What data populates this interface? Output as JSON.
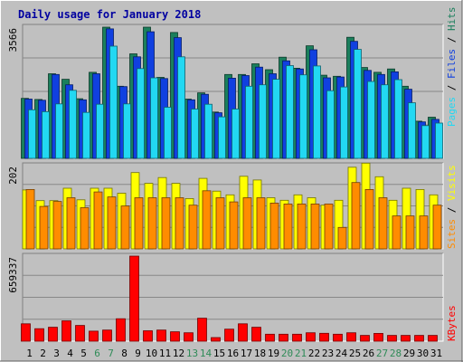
{
  "title": "Daily usage for January 2018",
  "colors": {
    "background": "#c0c0c0",
    "title": "#0000a0",
    "hits": "#1a7f5c",
    "files": "#1040e0",
    "pages": "#22d8f2",
    "visits": "#ffff00",
    "sites": "#ff8c00",
    "kbytes": "#ff0000",
    "day_weekday": "#000000",
    "day_weekend": "#2e8b57"
  },
  "chart_data": [
    {
      "type": "bar",
      "title": "Daily usage for January 2018",
      "categories": [
        "1",
        "2",
        "3",
        "4",
        "5",
        "6",
        "7",
        "8",
        "9",
        "10",
        "11",
        "12",
        "13",
        "14",
        "15",
        "16",
        "17",
        "18",
        "19",
        "20",
        "21",
        "22",
        "23",
        "24",
        "25",
        "26",
        "27",
        "28",
        "29",
        "30",
        "31"
      ],
      "weekend_days": [
        "6",
        "7",
        "13",
        "14",
        "20",
        "21",
        "27",
        "28"
      ],
      "ylabel": "Pages / Files / Hits",
      "ylim": [
        0,
        3566
      ],
      "tick_labels": [
        "3566"
      ],
      "grid": true,
      "series": [
        {
          "name": "Hits",
          "values": [
            1630,
            1600,
            2300,
            2150,
            1620,
            2340,
            3566,
            1960,
            2840,
            3566,
            2200,
            3420,
            1610,
            1780,
            1260,
            2280,
            2280,
            2570,
            2410,
            2750,
            2450,
            3060,
            2260,
            2230,
            3290,
            2470,
            2340,
            2430,
            1960,
            1010,
            1120
          ]
        },
        {
          "name": "Files",
          "values": [
            1610,
            1580,
            2280,
            2000,
            1590,
            2300,
            3520,
            1950,
            2760,
            3440,
            2170,
            3280,
            1590,
            1740,
            1240,
            2180,
            2250,
            2480,
            2300,
            2650,
            2430,
            2950,
            2190,
            2210,
            3180,
            2390,
            2280,
            2350,
            1880,
            990,
            1060
          ]
        },
        {
          "name": "Pages",
          "values": [
            1320,
            1270,
            1480,
            1850,
            1250,
            1470,
            3050,
            1480,
            2440,
            2190,
            1390,
            2760,
            1340,
            1470,
            1130,
            1340,
            1960,
            2000,
            2150,
            2520,
            2270,
            2510,
            1840,
            1940,
            2960,
            2090,
            2000,
            2140,
            1510,
            890,
            960
          ]
        }
      ]
    },
    {
      "type": "bar",
      "ylabel": "Sites / Visits",
      "ylim": [
        0,
        202
      ],
      "tick_labels": [
        "202"
      ],
      "grid": true,
      "series": [
        {
          "name": "Visits",
          "values": [
            143,
            117,
            117,
            147,
            119,
            147,
            147,
            135,
            185,
            159,
            173,
            159,
            122,
            171,
            140,
            131,
            176,
            167,
            124,
            118,
            131,
            124,
            106,
            118,
            198,
            208,
            175,
            118,
            147,
            144,
            131
          ]
        },
        {
          "name": "Sites",
          "values": [
            144,
            103,
            115,
            124,
            100,
            138,
            126,
            104,
            124,
            124,
            124,
            124,
            106,
            141,
            124,
            114,
            124,
            124,
            111,
            109,
            109,
            109,
            109,
            52,
            161,
            144,
            124,
            80,
            80,
            80,
            106
          ]
        }
      ]
    },
    {
      "type": "bar",
      "ylabel": "KBytes",
      "ylim": [
        0,
        659337
      ],
      "tick_labels": [
        "659337"
      ],
      "grid": true,
      "series": [
        {
          "name": "KBytes",
          "values": [
            135000,
            97000,
            108000,
            158000,
            122000,
            78000,
            86000,
            174000,
            659337,
            81000,
            86000,
            73000,
            65000,
            178000,
            28000,
            93000,
            135000,
            108000,
            54000,
            54000,
            54000,
            65000,
            61000,
            54000,
            65000,
            45000,
            60000,
            45000,
            45000,
            45000,
            45000
          ]
        }
      ]
    }
  ]
}
